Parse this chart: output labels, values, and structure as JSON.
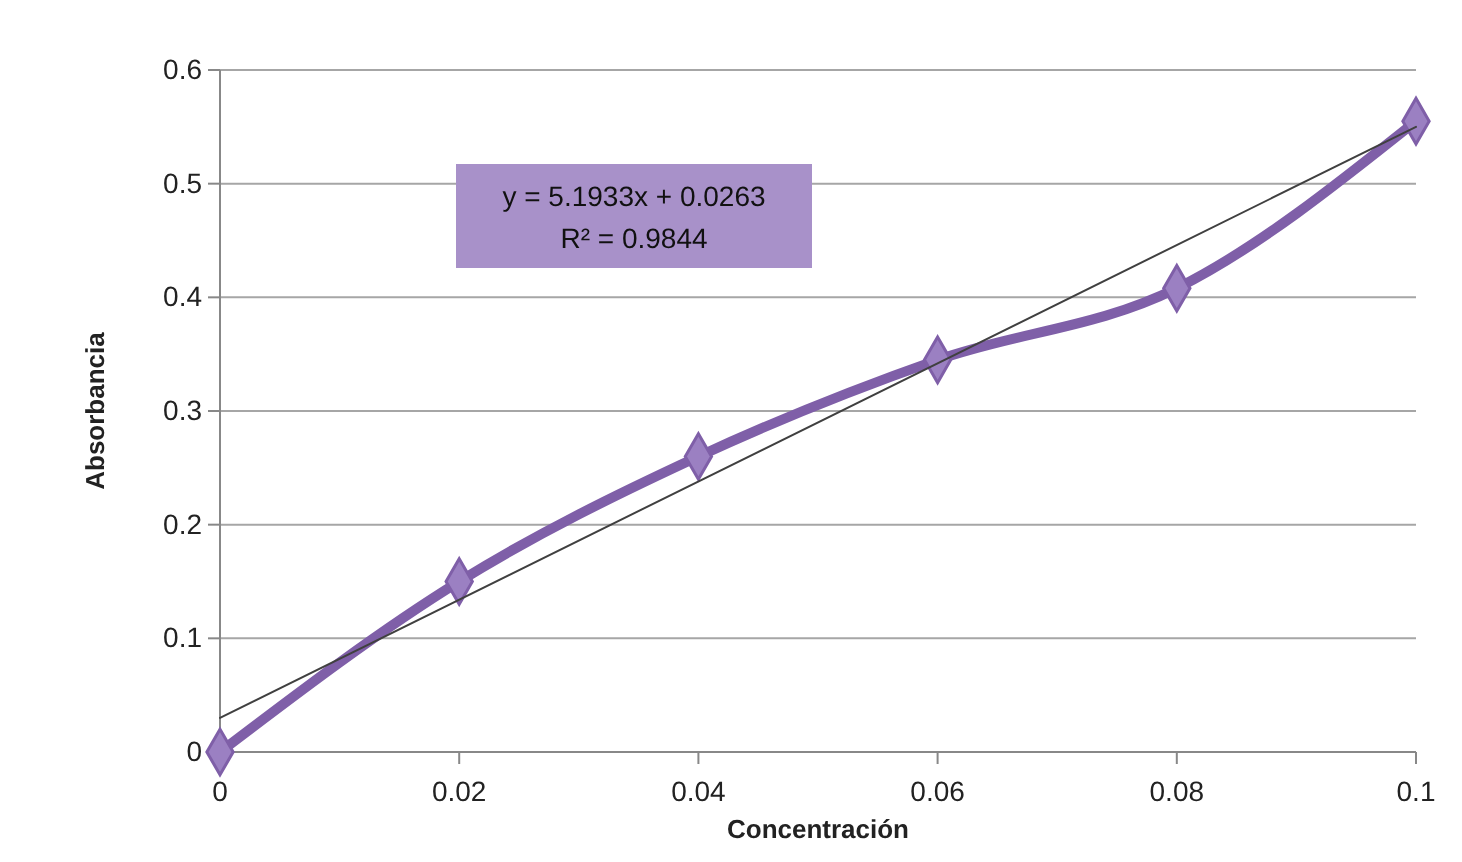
{
  "chart_data": {
    "type": "line",
    "xlabel": "Concentración",
    "ylabel": "Absorbancia",
    "xlim": [
      0,
      0.1
    ],
    "xticks": [
      0,
      0.02,
      0.04,
      0.06,
      0.08,
      0.1
    ],
    "ylim": [
      0,
      0.6
    ],
    "yticks": [
      0,
      0.1,
      0.2,
      0.3,
      0.4,
      0.5,
      0.6
    ],
    "grid": "y",
    "series": [
      {
        "color": "#7f5fa8",
        "x": [
          0,
          0.02,
          0.04,
          0.06,
          0.08,
          0.1
        ],
        "values": [
          0,
          0.15,
          0.26,
          0.345,
          0.408,
          0.555
        ],
        "marker": "diamond",
        "line_style": "solid"
      },
      {
        "type": "line",
        "color": "#404040",
        "x": [
          0,
          0.1
        ],
        "values": [
          0.03,
          0.55
        ],
        "marker": "none",
        "line_style": "solid"
      }
    ],
    "annotations": [
      "y = 5.1933x + 0.0263",
      "R² = 0.9844"
    ]
  }
}
